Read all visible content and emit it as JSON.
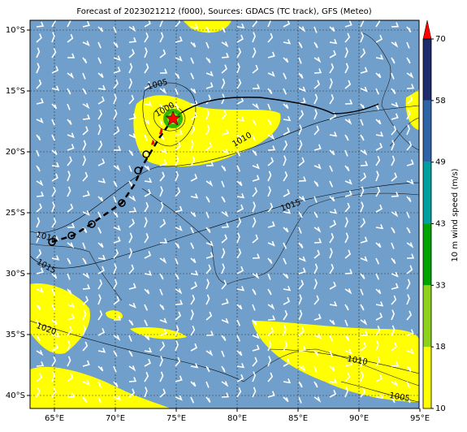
{
  "title": "Forecast of 2023021212 (f000), Sources: GDACS (TC track), GFS (Meteo)",
  "map": {
    "lon_labels": [
      "65°E",
      "70°E",
      "75°E",
      "80°E",
      "85°E",
      "90°E",
      "95°E"
    ],
    "lat_labels": [
      "10°S",
      "15°S",
      "20°S",
      "25°S",
      "30°S",
      "35°S",
      "40°S"
    ],
    "isobar_labels": [
      "1005",
      "1000",
      "1010",
      "1015",
      "1016",
      "1015",
      "1020",
      "1010",
      "1005"
    ]
  },
  "colorbar": {
    "label": "10 m wind speed (m/s)",
    "ticks": [
      10,
      18,
      33,
      43,
      49,
      58,
      70
    ],
    "colors": [
      "#ffff00",
      "#8fd21e",
      "#00a400",
      "#00a0a0",
      "#2f64a8",
      "#1c2c6c"
    ],
    "extend_color": "#ff0000"
  }
}
